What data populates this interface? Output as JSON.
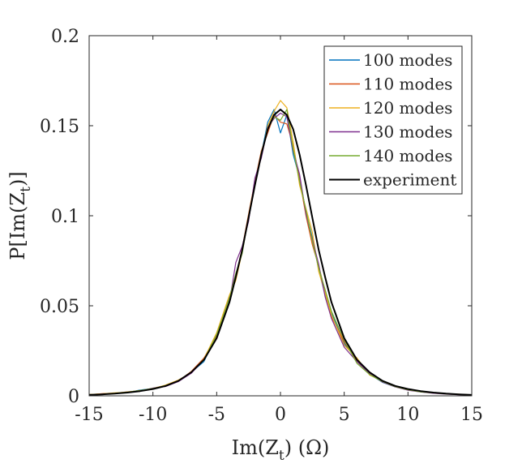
{
  "chart_data": {
    "type": "line",
    "title": "",
    "xlabel": {
      "main": "Im(Z",
      "sub": "t",
      "tail": ") (Ω)"
    },
    "ylabel": {
      "main": "P[Im(Z",
      "sub": "t",
      "tail": ")]"
    },
    "xlim": [
      -15,
      15
    ],
    "ylim": [
      0,
      0.2
    ],
    "xticks": [
      -15,
      -10,
      -5,
      0,
      5,
      10,
      15
    ],
    "xtick_labels": [
      "-15",
      "-10",
      "-5",
      "0",
      "5",
      "10",
      "15"
    ],
    "yticks": [
      0,
      0.05,
      0.1,
      0.15,
      0.2
    ],
    "ytick_labels": [
      "0",
      "0.05",
      "0.1",
      "0.15",
      "0.2"
    ],
    "grid": false,
    "legend_position": "top-right",
    "series": [
      {
        "name": "100 modes",
        "color": "#0072BD",
        "x": [
          -15,
          -14,
          -13,
          -12,
          -11,
          -10,
          -9,
          -8,
          -7,
          -6,
          -5,
          -4,
          -3.5,
          -3,
          -2.5,
          -2,
          -1.5,
          -1,
          -0.5,
          0,
          0.5,
          1,
          1.5,
          2,
          2.5,
          3,
          3.5,
          4,
          5,
          6,
          7,
          8,
          9,
          10,
          11,
          12,
          13,
          14,
          15
        ],
        "values": [
          0.0008,
          0.001,
          0.0015,
          0.0018,
          0.0032,
          0.004,
          0.0055,
          0.0085,
          0.013,
          0.019,
          0.034,
          0.055,
          0.067,
          0.081,
          0.098,
          0.118,
          0.134,
          0.152,
          0.159,
          0.146,
          0.156,
          0.134,
          0.121,
          0.102,
          0.088,
          0.07,
          0.056,
          0.046,
          0.029,
          0.02,
          0.012,
          0.0075,
          0.005,
          0.0035,
          0.0022,
          0.0016,
          0.001,
          0.0008,
          0.0005
        ]
      },
      {
        "name": "110 modes",
        "color": "#D95319",
        "x": [
          -15,
          -14,
          -13,
          -12,
          -11,
          -10,
          -9,
          -8,
          -7,
          -6,
          -5,
          -4,
          -3.5,
          -3,
          -2.5,
          -2,
          -1.5,
          -1,
          -0.5,
          0,
          0.5,
          1,
          1.5,
          2,
          2.5,
          3,
          3.5,
          4,
          5,
          6,
          7,
          8,
          9,
          10,
          11,
          12,
          13,
          14,
          15
        ],
        "values": [
          0.0006,
          0.0012,
          0.0014,
          0.0022,
          0.0028,
          0.0042,
          0.0058,
          0.0082,
          0.0135,
          0.021,
          0.033,
          0.053,
          0.066,
          0.082,
          0.101,
          0.119,
          0.136,
          0.146,
          0.156,
          0.152,
          0.151,
          0.139,
          0.12,
          0.1,
          0.084,
          0.072,
          0.058,
          0.044,
          0.03,
          0.019,
          0.0125,
          0.0078,
          0.0052,
          0.0033,
          0.0024,
          0.0015,
          0.0011,
          0.0007,
          0.0004
        ]
      },
      {
        "name": "120 modes",
        "color": "#EDB120",
        "x": [
          -15,
          -14,
          -13,
          -12,
          -11,
          -10,
          -9,
          -8,
          -7,
          -6,
          -5,
          -4,
          -3.5,
          -3,
          -2.5,
          -2,
          -1.5,
          -1,
          -0.5,
          0,
          0.5,
          1,
          1.5,
          2,
          2.5,
          3,
          3.5,
          4,
          5,
          6,
          7,
          8,
          9,
          10,
          11,
          12,
          13,
          14,
          15
        ],
        "values": [
          0.0007,
          0.0011,
          0.0016,
          0.002,
          0.003,
          0.0038,
          0.006,
          0.0088,
          0.0128,
          0.0205,
          0.035,
          0.056,
          0.064,
          0.08,
          0.099,
          0.12,
          0.133,
          0.15,
          0.158,
          0.164,
          0.16,
          0.141,
          0.117,
          0.104,
          0.091,
          0.069,
          0.057,
          0.045,
          0.028,
          0.021,
          0.0115,
          0.0082,
          0.0055,
          0.0038,
          0.0023,
          0.0017,
          0.0012,
          0.0009,
          0.0005
        ]
      },
      {
        "name": "130 modes",
        "color": "#7E2F8E",
        "x": [
          -15,
          -14,
          -13,
          -12,
          -11,
          -10,
          -9,
          -8,
          -7,
          -6,
          -5,
          -4,
          -3.5,
          -3,
          -2.5,
          -2,
          -1.5,
          -1,
          -0.5,
          0,
          0.5,
          1,
          1.5,
          2,
          2.5,
          3,
          3.5,
          4,
          5,
          6,
          7,
          8,
          9,
          10,
          11,
          12,
          13,
          14,
          15
        ],
        "values": [
          0.0005,
          0.001,
          0.0013,
          0.0019,
          0.0026,
          0.0043,
          0.0052,
          0.0079,
          0.0125,
          0.02,
          0.032,
          0.052,
          0.074,
          0.083,
          0.097,
          0.121,
          0.132,
          0.149,
          0.154,
          0.157,
          0.155,
          0.136,
          0.123,
          0.101,
          0.087,
          0.073,
          0.055,
          0.043,
          0.027,
          0.019,
          0.0122,
          0.0076,
          0.0049,
          0.0031,
          0.0021,
          0.0014,
          0.0009,
          0.0006,
          0.0004
        ]
      },
      {
        "name": "140 modes",
        "color": "#77AC30",
        "x": [
          -15,
          -14,
          -13,
          -12,
          -11,
          -10,
          -9,
          -8,
          -7,
          -6,
          -5,
          -4,
          -3.5,
          -3,
          -2.5,
          -2,
          -1.5,
          -1,
          -0.5,
          0,
          0.5,
          1,
          1.5,
          2,
          2.5,
          3,
          3.5,
          4,
          5,
          6,
          7,
          8,
          9,
          10,
          11,
          12,
          13,
          14,
          15
        ],
        "values": [
          0.0006,
          0.0009,
          0.0014,
          0.0021,
          0.0029,
          0.0041,
          0.0057,
          0.0084,
          0.0132,
          0.0198,
          0.034,
          0.054,
          0.068,
          0.079,
          0.1,
          0.117,
          0.135,
          0.148,
          0.155,
          0.153,
          0.159,
          0.137,
          0.119,
          0.103,
          0.086,
          0.071,
          0.059,
          0.047,
          0.031,
          0.018,
          0.0118,
          0.0079,
          0.0051,
          0.0034,
          0.0022,
          0.0016,
          0.001,
          0.0007,
          0.0005
        ]
      },
      {
        "name": "experiment",
        "color": "#000000",
        "x": [
          -15,
          -14,
          -13,
          -12,
          -11,
          -10,
          -9,
          -8,
          -7,
          -6,
          -5,
          -4,
          -3.5,
          -3,
          -2.5,
          -2,
          -1.5,
          -1,
          -0.5,
          0,
          0.5,
          1,
          1.5,
          2,
          2.5,
          3,
          3.5,
          4,
          5,
          6,
          7,
          8,
          9,
          10,
          11,
          12,
          13,
          14,
          15
        ],
        "values": [
          0.0005,
          0.0008,
          0.0012,
          0.0018,
          0.0026,
          0.0038,
          0.0055,
          0.0083,
          0.013,
          0.02,
          0.032,
          0.052,
          0.066,
          0.081,
          0.099,
          0.117,
          0.134,
          0.148,
          0.156,
          0.159,
          0.156,
          0.148,
          0.134,
          0.117,
          0.099,
          0.081,
          0.066,
          0.052,
          0.032,
          0.02,
          0.013,
          0.0083,
          0.0055,
          0.0038,
          0.0026,
          0.0018,
          0.0012,
          0.0008,
          0.0005
        ]
      }
    ]
  }
}
